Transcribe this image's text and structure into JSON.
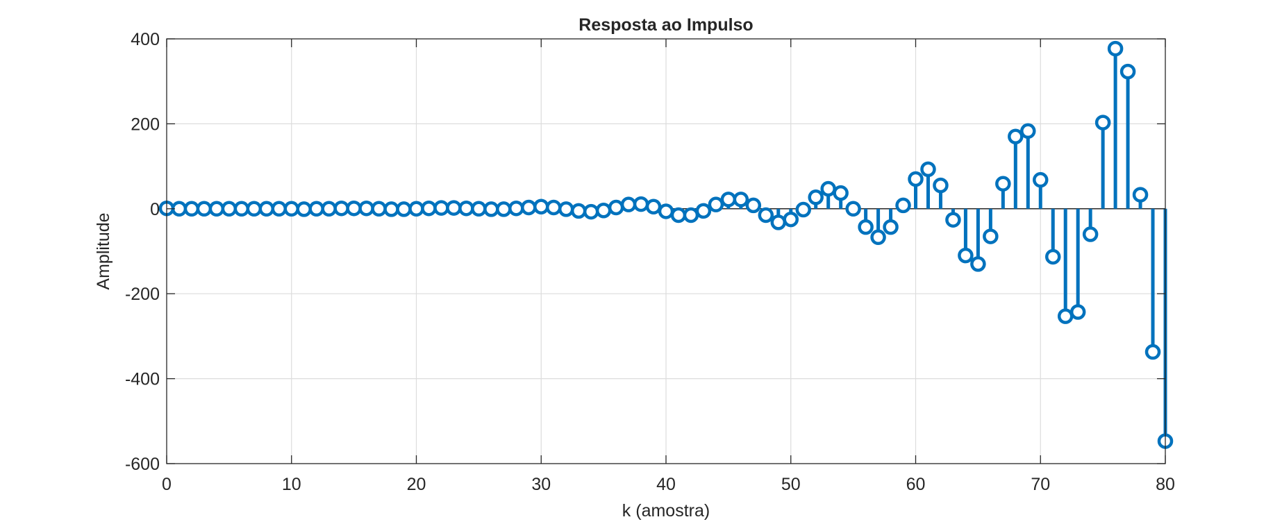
{
  "chart_data": {
    "type": "stem",
    "title": "Resposta ao Impulso",
    "xlabel": "k (amostra)",
    "ylabel": "Amplitude",
    "xlim": [
      0,
      80
    ],
    "ylim": [
      -600,
      400
    ],
    "xticks": [
      0,
      10,
      20,
      30,
      40,
      50,
      60,
      70,
      80
    ],
    "yticks": [
      -600,
      -400,
      -200,
      0,
      200,
      400
    ],
    "grid": true,
    "color": "#0072BD",
    "x": [
      0,
      1,
      2,
      3,
      4,
      5,
      6,
      7,
      8,
      9,
      10,
      11,
      12,
      13,
      14,
      15,
      16,
      17,
      18,
      19,
      20,
      21,
      22,
      23,
      24,
      25,
      26,
      27,
      28,
      29,
      30,
      31,
      32,
      33,
      34,
      35,
      36,
      37,
      38,
      39,
      40,
      41,
      42,
      43,
      44,
      45,
      46,
      47,
      48,
      49,
      50,
      51,
      52,
      53,
      54,
      55,
      56,
      57,
      58,
      59,
      60,
      61,
      62,
      63,
      64,
      65,
      66,
      67,
      68,
      69,
      70,
      71,
      72,
      73,
      74,
      75,
      76,
      77,
      78,
      79,
      80
    ],
    "values": [
      1,
      0,
      0,
      0,
      0,
      0,
      0,
      0,
      0,
      0,
      0,
      -1,
      0,
      0,
      1,
      1,
      1,
      0,
      -1,
      -1,
      0,
      1,
      2,
      2,
      1,
      0,
      -1,
      -1,
      1,
      3,
      5,
      3,
      -1,
      -5,
      -7,
      -4,
      3,
      10,
      11,
      5,
      -6,
      -15,
      -15,
      -5,
      10,
      22,
      22,
      8,
      -15,
      -32,
      -25,
      -2,
      27,
      47,
      37,
      0,
      -43,
      -67,
      -43,
      8,
      70,
      93,
      55,
      -26,
      -110,
      -130,
      -65,
      59,
      170,
      183,
      68,
      -113,
      -253,
      -243,
      -60,
      203,
      377,
      323,
      33,
      -337,
      -547
    ]
  }
}
